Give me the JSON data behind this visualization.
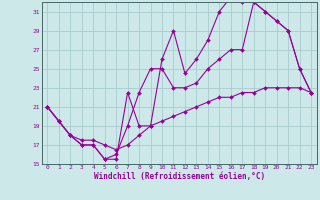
{
  "xlabel": "Windchill (Refroidissement éolien,°C)",
  "background_color": "#cce8e8",
  "grid_color": "#aacccc",
  "line_color": "#990099",
  "xlim": [
    -0.5,
    23.5
  ],
  "ylim": [
    15,
    32
  ],
  "yticks": [
    15,
    17,
    19,
    21,
    23,
    25,
    27,
    29,
    31
  ],
  "xticks": [
    0,
    1,
    2,
    3,
    4,
    5,
    6,
    7,
    8,
    9,
    10,
    11,
    12,
    13,
    14,
    15,
    16,
    17,
    18,
    19,
    20,
    21,
    22,
    23
  ],
  "line1_x": [
    0,
    1,
    2,
    3,
    4,
    5,
    6,
    7,
    8,
    9,
    10,
    11,
    12,
    13,
    14,
    15,
    16,
    17,
    18,
    19,
    20,
    21,
    22,
    23
  ],
  "line1_y": [
    21,
    19.5,
    18,
    17,
    17,
    15.5,
    15.5,
    22.5,
    19,
    19,
    26,
    29,
    24.5,
    26,
    28,
    31,
    32.5,
    32,
    32,
    31,
    30,
    29,
    25,
    22.5
  ],
  "line2_x": [
    0,
    1,
    2,
    3,
    4,
    5,
    6,
    7,
    8,
    9,
    10,
    11,
    12,
    13,
    14,
    15,
    16,
    17,
    18,
    19,
    20,
    21,
    22,
    23
  ],
  "line2_y": [
    21,
    19.5,
    18,
    17,
    17,
    15.5,
    16,
    19,
    22.5,
    25,
    25,
    23,
    23,
    23.5,
    25,
    26,
    27,
    27,
    32,
    31,
    30,
    29,
    25,
    22.5
  ],
  "line3_x": [
    0,
    1,
    2,
    3,
    4,
    5,
    6,
    7,
    8,
    9,
    10,
    11,
    12,
    13,
    14,
    15,
    16,
    17,
    18,
    19,
    20,
    21,
    22,
    23
  ],
  "line3_y": [
    21,
    19.5,
    18,
    17.5,
    17.5,
    17,
    16.5,
    17,
    18,
    19,
    19.5,
    20,
    20.5,
    21,
    21.5,
    22,
    22,
    22.5,
    22.5,
    23,
    23,
    23,
    23,
    22.5
  ]
}
